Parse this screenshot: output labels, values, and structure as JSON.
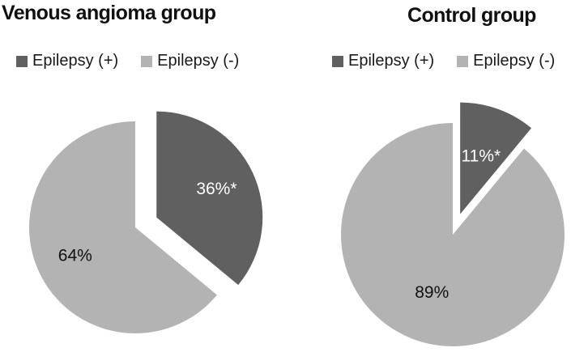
{
  "colors": {
    "epilepsy_pos": "#606060",
    "epilepsy_neg": "#b3b3b3",
    "label_on_dark": "#ffffff",
    "label_on_light": "#111111"
  },
  "chart_data": [
    {
      "type": "pie",
      "title": "Venous angioma group",
      "legend": [
        "Epilepsy (+)",
        "Epilepsy (-)"
      ],
      "legend_position": "top",
      "slices": [
        {
          "name": "Epilepsy (+)",
          "value": 36,
          "label": "36%*",
          "exploded": true
        },
        {
          "name": "Epilepsy (-)",
          "value": 64,
          "label": "64%",
          "exploded": false
        }
      ]
    },
    {
      "type": "pie",
      "title": "Control group",
      "legend": [
        "Epilepsy (+)",
        "Epilepsy (-)"
      ],
      "legend_position": "top",
      "slices": [
        {
          "name": "Epilepsy (+)",
          "value": 11,
          "label": "11%*",
          "exploded": true
        },
        {
          "name": "Epilepsy (-)",
          "value": 89,
          "label": "89%",
          "exploded": false
        }
      ]
    }
  ]
}
